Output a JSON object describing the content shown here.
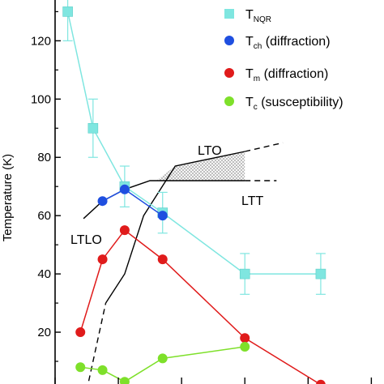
{
  "chart_data": {
    "type": "line",
    "ylabel": "Temperature (K)",
    "ylim": [
      0,
      134
    ],
    "xlim": [
      0,
      5.2
    ],
    "y_ticks": [
      20,
      40,
      60,
      80,
      100,
      120
    ],
    "legend_position": "top-right",
    "series": [
      {
        "id": "tnqr",
        "legend_main": "T",
        "legend_sub": "NQR",
        "legend_suffix": "",
        "marker": "square",
        "color": "#7fe6e0",
        "x": [
          0.2,
          0.6,
          1.1,
          1.7,
          3.0,
          4.2
        ],
        "values": [
          130,
          90,
          70,
          61,
          40,
          40
        ],
        "err": [
          10,
          10,
          7,
          7,
          7,
          7
        ]
      },
      {
        "id": "tch",
        "legend_main": "T",
        "legend_sub": "ch",
        "legend_suffix": " (diffraction)",
        "marker": "circle",
        "color": "#1f4fe0",
        "x": [
          0.75,
          1.1,
          1.7
        ],
        "values": [
          65,
          69,
          60
        ]
      },
      {
        "id": "tm",
        "legend_main": "T",
        "legend_sub": "m",
        "legend_suffix": " (diffraction)",
        "marker": "circle",
        "color": "#e01b1b",
        "x": [
          0.4,
          0.75,
          1.1,
          1.7,
          3.0,
          4.2
        ],
        "values": [
          20,
          45,
          55,
          45,
          18,
          2
        ]
      },
      {
        "id": "tc",
        "legend_main": "T",
        "legend_sub": "c",
        "legend_suffix": " (susceptibility)",
        "marker": "circle",
        "color": "#7ee02a",
        "x": [
          0.4,
          0.75,
          1.1,
          1.7,
          3.0
        ],
        "values": [
          8,
          7,
          3,
          11,
          15
        ]
      }
    ],
    "phase_boundaries": {
      "upper_solid": {
        "x": [
          0.45,
          0.75,
          1.1,
          1.5,
          3.0
        ],
        "values": [
          59,
          65,
          69,
          72,
          72
        ]
      },
      "upper_dashed": {
        "x": [
          3.0,
          3.5
        ],
        "values": [
          72,
          72
        ]
      },
      "lto_boundary": {
        "x": [
          0.8,
          1.1,
          1.4,
          1.9,
          3.0
        ],
        "values": [
          30,
          40,
          60,
          77,
          82
        ]
      },
      "lto_dashed": {
        "x": [
          3.0,
          3.6
        ],
        "values": [
          82,
          85
        ]
      },
      "low_dashed": {
        "x": [
          0.5,
          0.8
        ],
        "values": [
          0,
          30
        ]
      }
    },
    "region_labels": {
      "lto": "LTO",
      "ltt": "LTT",
      "ltlo": "LTLO"
    }
  }
}
